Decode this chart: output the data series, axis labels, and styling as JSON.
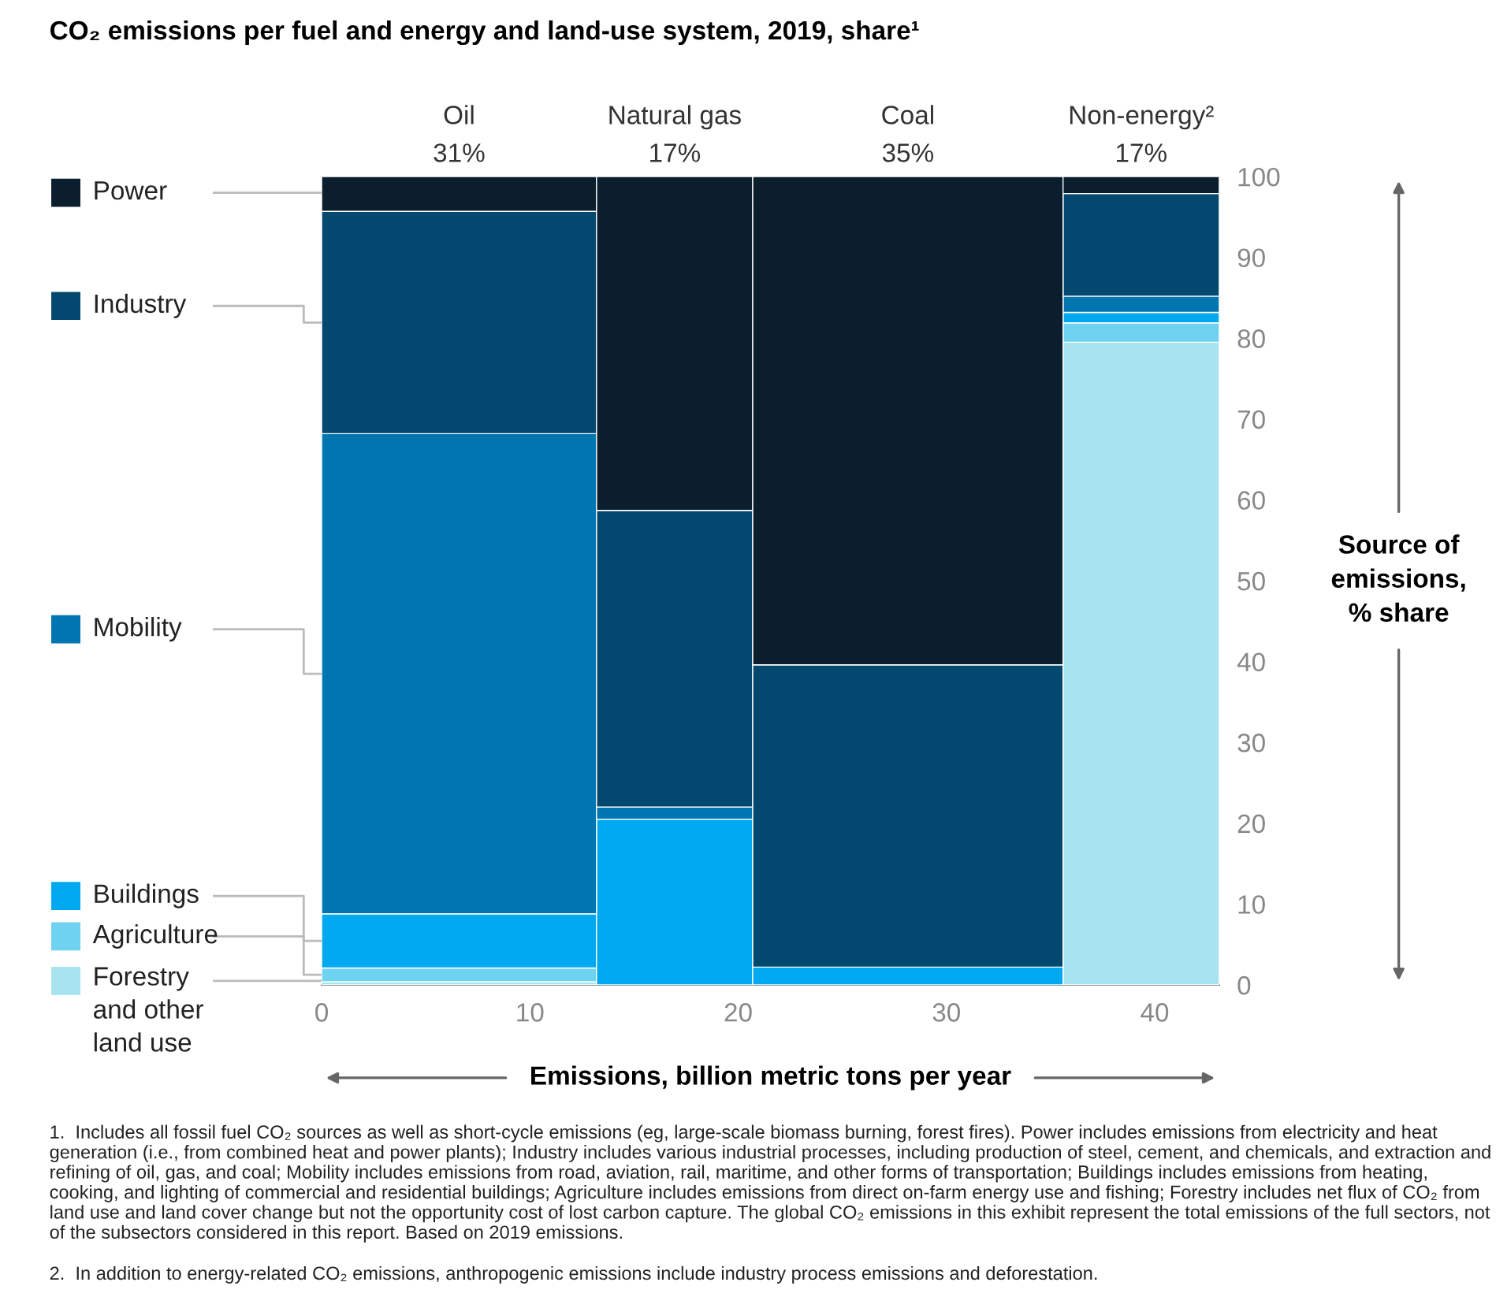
{
  "chart_data": {
    "type": "bar",
    "stacked": true,
    "title": "CO₂ emissions per fuel and energy and land-use system, 2019, share¹",
    "x": [
      6.6,
      16.95,
      28.15,
      39.35
    ],
    "xlim": [
      0,
      43.1
    ],
    "xticks": [
      0,
      10,
      20,
      30,
      40
    ],
    "ylim": [
      0,
      100
    ],
    "yticks": [
      0,
      10,
      20,
      30,
      40,
      50,
      60,
      70,
      80,
      90,
      100
    ],
    "xlabel": "Emissions, billion metric tons per year",
    "ylabel": "Source of\nemissions,\n% share",
    "legend": "left",
    "series": [
      {
        "name": "Forestry\nand other\nland use",
        "color": "#a8e4ef",
        "values": [
          0.4,
          0,
          0,
          79.5
        ]
      },
      {
        "name": "Agriculture",
        "color": "#6fd2f0",
        "values": [
          1.7,
          0,
          0,
          2.4
        ]
      },
      {
        "name": "Buildings",
        "color": "#00a8f0",
        "values": [
          6.7,
          20.5,
          2.2,
          1.3
        ]
      },
      {
        "name": "Mobility",
        "color": "#0076b0",
        "values": [
          59.4,
          1.5,
          0,
          2.0
        ]
      },
      {
        "name": "Industry",
        "color": "#03486e",
        "values": [
          27.5,
          36.7,
          37.4,
          12.7
        ]
      },
      {
        "name": "Power",
        "color": "#0a1e2e",
        "values": [
          4.3,
          41.3,
          60.4,
          2.1
        ]
      }
    ],
    "annotations": [
      "Oil\n31%",
      "Natural gas\n17%",
      "Coal\n35%",
      "Non-energy²\n17%",
      "1.  Includes all fossil fuel CO₂ sources as well as short-cycle emissions (eg, large-scale biomass burning, forest fires). Power includes emissions from electricity and heat generation (i.e., from combined heat and power plants); Industry includes various industrial processes, including production of steel, cement, and chemicals, and extraction and refining of oil, gas, and coal; Mobility includes emissions from road, aviation, rail, maritime, and other forms of transportation; Buildings includes emissions from heating, cooking, and lighting of commercial and residential buildings; Agriculture includes emissions from direct on-farm energy use and fishing; Forestry includes net flux of CO₂ from land use and land cover change but not the opportunity cost of lost carbon capture. The global CO₂ emissions in this exhibit represent the total emissions of the full sectors, not of the subsectors considered in this report. Based on 2019 emissions.",
      "2.  In addition to energy-related CO₂ emissions, anthropogenic emissions include industry process emissions and deforestation."
    ]
  }
}
